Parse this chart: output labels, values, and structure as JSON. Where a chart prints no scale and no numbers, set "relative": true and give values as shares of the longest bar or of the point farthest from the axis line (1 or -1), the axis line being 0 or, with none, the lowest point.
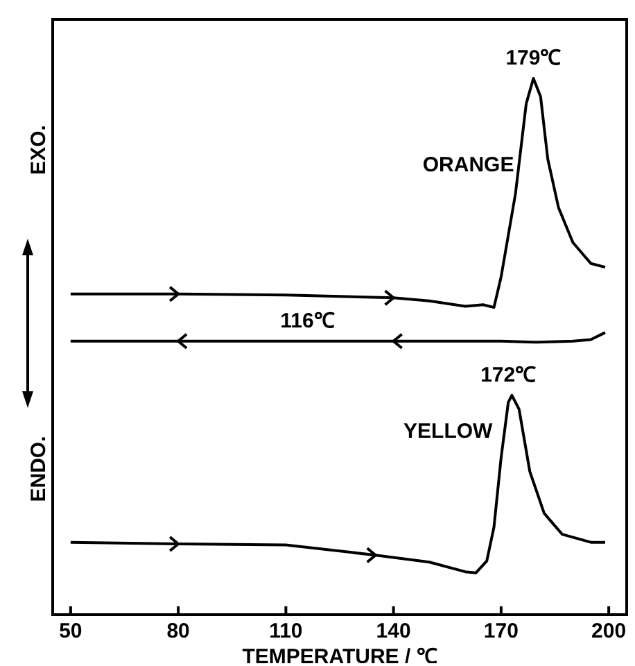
{
  "chart_data": {
    "type": "line",
    "xlabel": "TEMPERATURE / ℃",
    "relative": true,
    "xlim": [
      45,
      205
    ],
    "xticks": [
      50,
      80,
      110,
      140,
      170,
      200
    ],
    "marker": "none",
    "line_style": "solid",
    "series": [
      {
        "name": "ORANGE",
        "color": "#000000",
        "x": [
          50,
          80,
          110,
          140,
          150,
          160,
          165,
          168,
          170,
          174,
          177,
          179,
          181,
          183,
          186,
          190,
          195,
          199
        ],
        "values": [
          0.598,
          0.598,
          0.596,
          0.591,
          0.585,
          0.575,
          0.578,
          0.573,
          0.63,
          0.785,
          0.953,
          1,
          0.966,
          0.85,
          0.759,
          0.694,
          0.655,
          0.648
        ]
      },
      {
        "color": "#000000",
        "x": [
          199,
          195,
          190,
          180,
          170,
          140,
          110,
          80,
          50
        ],
        "values": [
          0.526,
          0.513,
          0.51,
          0.508,
          0.51,
          0.51,
          0.51,
          0.51,
          0.51
        ]
      },
      {
        "name": "YELLOW",
        "color": "#000000",
        "x": [
          50,
          80,
          110,
          135,
          150,
          160,
          163,
          166,
          168,
          170,
          172,
          173,
          175,
          178,
          182,
          187,
          195,
          199
        ],
        "values": [
          0.135,
          0.132,
          0.13,
          0.111,
          0.098,
          0.08,
          0.078,
          0.1,
          0.163,
          0.293,
          0.396,
          0.409,
          0.383,
          0.267,
          0.189,
          0.15,
          0.135,
          0.135
        ]
      }
    ],
    "annotations": [
      "EXO.",
      "ENDO.",
      {
        "text": "179℃",
        "x": 179,
        "y": 1
      },
      {
        "text": "116℃",
        "x": 116,
        "y": 0.51
      },
      {
        "text": "172℃",
        "x": 172,
        "y": 0.409
      }
    ]
  }
}
